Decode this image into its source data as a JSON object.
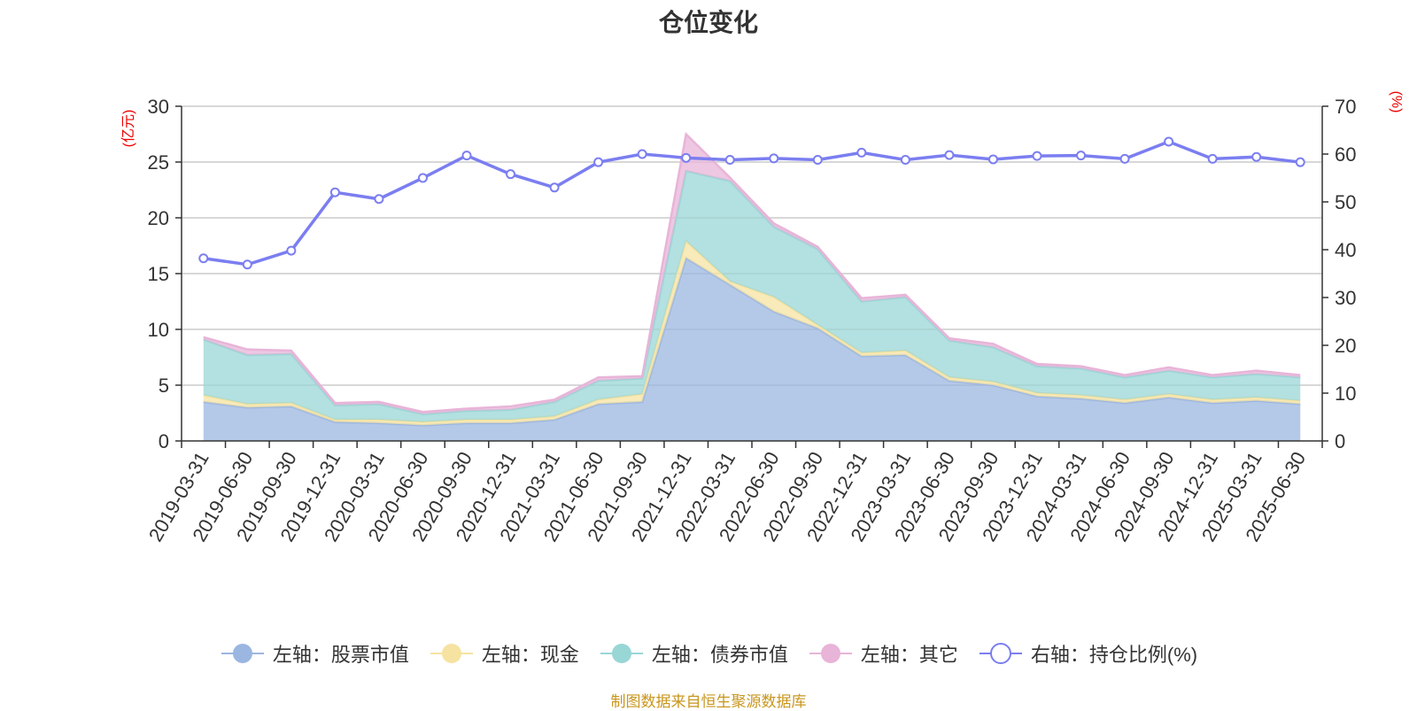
{
  "chart_data": {
    "type": "area",
    "title": "仓位变化",
    "source_note": "制图数据来自恒生聚源数据库",
    "left_axis_unit": "(亿元)",
    "right_axis_unit": "(%)",
    "left_ylim": [
      0,
      30
    ],
    "left_ticks": [
      "0",
      "5",
      "10",
      "15",
      "20",
      "25",
      "30"
    ],
    "right_ylim": [
      0,
      70
    ],
    "right_ticks": [
      "0",
      "10",
      "20",
      "30",
      "40",
      "50",
      "60",
      "70"
    ],
    "categories": [
      "2019-03-31",
      "2019-06-30",
      "2019-09-30",
      "2019-12-31",
      "2020-03-31",
      "2020-06-30",
      "2020-09-30",
      "2020-12-31",
      "2021-03-31",
      "2021-06-30",
      "2021-09-30",
      "2021-12-31",
      "2022-03-31",
      "2022-06-30",
      "2022-09-30",
      "2022-12-31",
      "2023-03-31",
      "2023-06-30",
      "2023-09-30",
      "2023-12-31",
      "2024-03-31",
      "2024-06-30",
      "2024-09-30",
      "2024-12-31",
      "2025-03-31",
      "2025-06-30"
    ],
    "series": [
      {
        "name": "左轴：股票市值",
        "axis": "left",
        "stack": true,
        "color": "#9bb6e0",
        "values": [
          3.5,
          3.0,
          3.1,
          1.7,
          1.6,
          1.4,
          1.6,
          1.6,
          1.9,
          3.3,
          3.5,
          16.4,
          14.0,
          11.6,
          10.1,
          7.6,
          7.7,
          5.4,
          5.0,
          4.0,
          3.8,
          3.4,
          3.9,
          3.4,
          3.6,
          3.3
        ]
      },
      {
        "name": "左轴：现金",
        "axis": "left",
        "stack": true,
        "color": "#f6e3a1",
        "values": [
          0.6,
          0.3,
          0.3,
          0.2,
          0.3,
          0.3,
          0.3,
          0.3,
          0.3,
          0.4,
          0.7,
          1.5,
          0.3,
          1.3,
          0.3,
          0.3,
          0.4,
          0.3,
          0.3,
          0.3,
          0.3,
          0.3,
          0.3,
          0.3,
          0.3,
          0.3
        ]
      },
      {
        "name": "左轴：债券市值",
        "axis": "left",
        "stack": true,
        "color": "#99d6d6",
        "values": [
          5.0,
          4.4,
          4.4,
          1.3,
          1.4,
          0.7,
          0.8,
          0.9,
          1.3,
          1.7,
          1.4,
          6.3,
          9.0,
          6.3,
          6.8,
          4.6,
          4.8,
          3.3,
          3.1,
          2.4,
          2.4,
          2.0,
          2.1,
          2.0,
          2.1,
          2.1
        ]
      },
      {
        "name": "左轴：其它",
        "axis": "left",
        "stack": true,
        "color": "#e8b4d8",
        "values": [
          0.2,
          0.5,
          0.3,
          0.2,
          0.2,
          0.2,
          0.2,
          0.3,
          0.2,
          0.3,
          0.2,
          3.3,
          0.3,
          0.3,
          0.2,
          0.3,
          0.2,
          0.2,
          0.3,
          0.2,
          0.2,
          0.2,
          0.3,
          0.2,
          0.3,
          0.2
        ]
      },
      {
        "name": "右轴：持仓比例(%)",
        "axis": "right",
        "stack": false,
        "color": "#7b7ef0",
        "values": [
          38.2,
          36.9,
          39.8,
          52.0,
          50.6,
          55.0,
          59.7,
          55.8,
          53.0,
          58.3,
          60.0,
          59.2,
          58.8,
          59.1,
          58.8,
          60.3,
          58.8,
          59.8,
          58.9,
          59.6,
          59.7,
          59.0,
          62.6,
          59.0,
          59.4,
          58.3
        ]
      }
    ],
    "grid": true,
    "legend_position": "bottom"
  }
}
